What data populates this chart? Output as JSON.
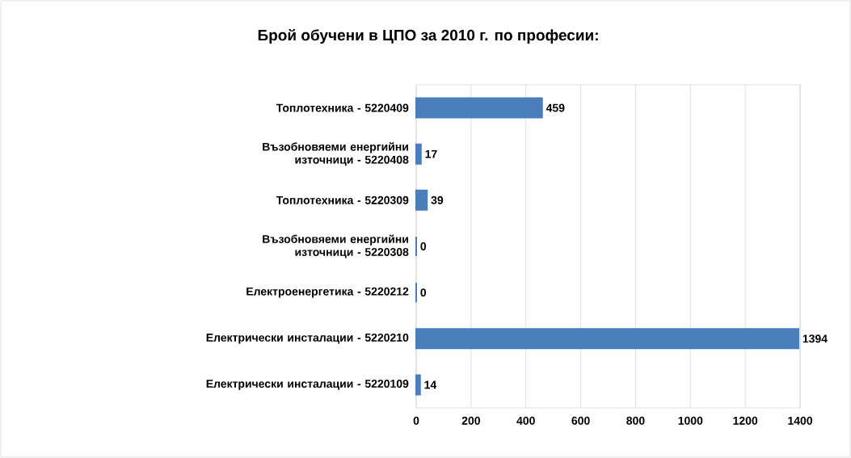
{
  "chart_data": {
    "type": "bar",
    "orientation": "horizontal",
    "title": "Брой обучени в ЦПО за 2010 г. по професии:",
    "categories": [
      "Топлотехника - 5220409",
      "Възобновяеми енергийни източници - 5220408",
      "Топлотехника - 5220309",
      "Възобновяеми енергийни източници - 5220308",
      "Електроенергетика - 5220212",
      "Електрически инсталации - 5220210",
      "Електрически инсталации - 5220109"
    ],
    "values": [
      459,
      17,
      39,
      0,
      0,
      1394,
      14
    ],
    "color": "#4a7ebb",
    "xlim": [
      0,
      1400
    ],
    "xticks": [
      0,
      200,
      400,
      600,
      800,
      1000,
      1200,
      1400
    ],
    "grid": "x",
    "data_labels": true
  }
}
